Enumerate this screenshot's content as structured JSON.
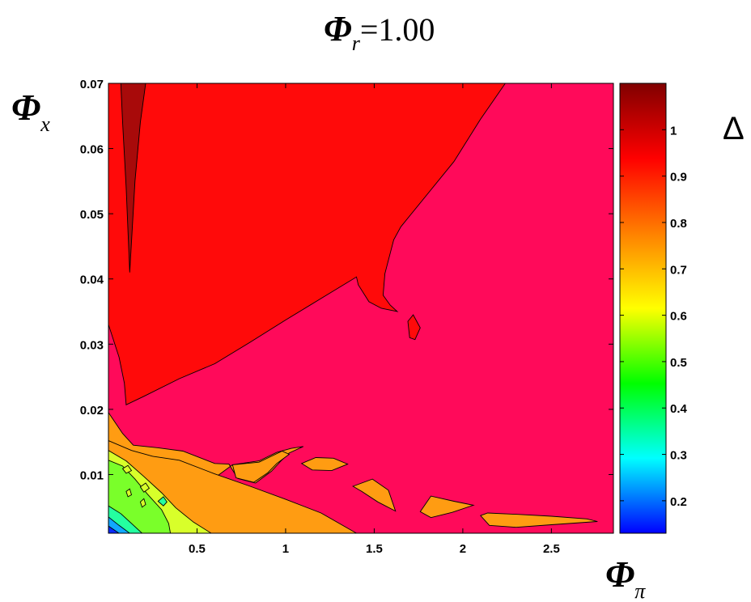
{
  "chart_data": {
    "type": "contour",
    "title": {
      "symbol": "Φ",
      "subscript": "r",
      "value_text": "=1.00"
    },
    "xlabel": {
      "symbol": "Φ",
      "subscript": "π"
    },
    "ylabel": {
      "symbol": "Φ",
      "subscript": "x"
    },
    "colorbar_label": "Δ",
    "xlim": [
      0.0,
      2.85
    ],
    "ylim": [
      0.001,
      0.07
    ],
    "clim": [
      0.13,
      1.1
    ],
    "x_ticks": [
      0.5,
      1,
      1.5,
      2,
      2.5
    ],
    "x_tick_labels": [
      "0.5",
      "1",
      "1.5",
      "2",
      "2.5"
    ],
    "y_ticks": [
      0.01,
      0.02,
      0.03,
      0.04,
      0.05,
      0.06,
      0.07
    ],
    "y_tick_labels": [
      "0.01",
      "0.02",
      "0.03",
      "0.04",
      "0.05",
      "0.06",
      "0.07"
    ],
    "colorbar_ticks": [
      0.2,
      0.3,
      0.4,
      0.5,
      0.6,
      0.7,
      0.8,
      0.9,
      1.0
    ],
    "colorbar_tick_labels": [
      "0.2",
      "0.3",
      "0.4",
      "0.5",
      "0.6",
      "0.7",
      "0.8",
      "0.9",
      "1"
    ],
    "background_level_color": "#ff0a5a",
    "colormap": [
      "#0000ff",
      "#00ffff",
      "#00ff00",
      "#ffff00",
      "#ff8000",
      "#ff0000",
      "#800000"
    ],
    "regions": [
      {
        "level": 1.0,
        "color": "#ff0a0a",
        "points": [
          [
            0,
            0.07
          ],
          [
            2.24,
            0.07
          ],
          [
            2.1,
            0.0645
          ],
          [
            1.95,
            0.058
          ],
          [
            1.8,
            0.053
          ],
          [
            1.65,
            0.048
          ],
          [
            1.61,
            0.046
          ],
          [
            1.56,
            0.0408
          ],
          [
            1.55,
            0.0375
          ],
          [
            1.59,
            0.036
          ],
          [
            1.63,
            0.035
          ],
          [
            1.54,
            0.0355
          ],
          [
            1.47,
            0.0365
          ],
          [
            1.41,
            0.0391
          ],
          [
            1.4,
            0.0403
          ],
          [
            1.2,
            0.037
          ],
          [
            1.0,
            0.0337
          ],
          [
            0.8,
            0.0303
          ],
          [
            0.6,
            0.027
          ],
          [
            0.4,
            0.0247
          ],
          [
            0.2,
            0.022
          ],
          [
            0.1,
            0.0207
          ],
          [
            0.09,
            0.024
          ],
          [
            0.06,
            0.028
          ],
          [
            0.0,
            0.033
          ]
        ]
      },
      {
        "level": 1.0,
        "color": "#ff0a0a",
        "points": [
          [
            1.69,
            0.0335
          ],
          [
            1.72,
            0.0345
          ],
          [
            1.76,
            0.0325
          ],
          [
            1.73,
            0.0307
          ],
          [
            1.7,
            0.031
          ]
        ]
      },
      {
        "level": 1.08,
        "color": "#a80a0a",
        "points": [
          [
            0.07,
            0.07
          ],
          [
            0.21,
            0.07
          ],
          [
            0.18,
            0.064
          ],
          [
            0.15,
            0.055
          ],
          [
            0.12,
            0.041
          ],
          [
            0.1,
            0.054
          ],
          [
            0.08,
            0.064
          ]
        ]
      },
      {
        "level": 0.85,
        "color": "#ff9c12",
        "points": [
          [
            0.0,
            0.001
          ],
          [
            1.4,
            0.001
          ],
          [
            1.2,
            0.0035
          ],
          [
            1.0,
            0.0055
          ],
          [
            0.8,
            0.0078
          ],
          [
            0.6,
            0.0098
          ],
          [
            0.45,
            0.0112
          ],
          [
            0.35,
            0.012
          ],
          [
            0.25,
            0.0132
          ],
          [
            0.15,
            0.0137
          ],
          [
            0.1,
            0.0148
          ],
          [
            0.0,
            0.0152
          ]
        ]
      },
      {
        "level": 0.85,
        "color": "#ff9c12",
        "points": [
          [
            0.0,
            0.0195
          ],
          [
            0.0,
            0.0152
          ],
          [
            0.2,
            0.012
          ],
          [
            0.4,
            0.0114
          ],
          [
            0.6,
            0.0095
          ],
          [
            0.7,
            0.0115
          ],
          [
            0.85,
            0.0121
          ],
          [
            0.95,
            0.0134
          ],
          [
            1.03,
            0.014
          ],
          [
            1.1,
            0.0143
          ],
          [
            1.02,
            0.0133
          ],
          [
            0.97,
            0.012
          ],
          [
            0.92,
            0.0105
          ],
          [
            0.83,
            0.0087
          ],
          [
            0.73,
            0.0094
          ],
          [
            0.68,
            0.0116
          ],
          [
            0.6,
            0.0117
          ],
          [
            0.42,
            0.0136
          ],
          [
            0.28,
            0.0141
          ],
          [
            0.14,
            0.0145
          ],
          [
            0.08,
            0.0163
          ]
        ]
      },
      {
        "level": 0.85,
        "color": "#ff9c12",
        "points": [
          [
            0.0,
            0.0152
          ],
          [
            0.13,
            0.0137
          ],
          [
            0.25,
            0.0128
          ],
          [
            0.4,
            0.0122
          ],
          [
            0.6,
            0.0101
          ],
          [
            0.8,
            0.0082
          ],
          [
            1.0,
            0.0062
          ],
          [
            1.2,
            0.0041
          ],
          [
            1.4,
            0.001
          ],
          [
            0.0,
            0.001
          ]
        ]
      },
      {
        "level": 0.85,
        "color": "#ff9c12",
        "points": [
          [
            0.7,
            0.0115
          ],
          [
            0.85,
            0.0119
          ],
          [
            0.98,
            0.0136
          ],
          [
            1.02,
            0.0131
          ],
          [
            0.95,
            0.0117
          ],
          [
            0.9,
            0.0103
          ],
          [
            0.82,
            0.0088
          ],
          [
            0.72,
            0.0095
          ]
        ]
      },
      {
        "level": 0.85,
        "color": "#ff9c12",
        "points": [
          [
            1.09,
            0.0117
          ],
          [
            1.17,
            0.0126
          ],
          [
            1.27,
            0.0125
          ],
          [
            1.35,
            0.0116
          ],
          [
            1.26,
            0.0106
          ],
          [
            1.15,
            0.0107
          ]
        ]
      },
      {
        "level": 0.85,
        "color": "#ff9c12",
        "points": [
          [
            1.38,
            0.0082
          ],
          [
            1.49,
            0.0093
          ],
          [
            1.58,
            0.0076
          ],
          [
            1.62,
            0.0044
          ],
          [
            1.52,
            0.0058
          ],
          [
            1.43,
            0.0074
          ]
        ]
      },
      {
        "level": 0.85,
        "color": "#ff9c12",
        "points": [
          [
            1.76,
            0.0043
          ],
          [
            1.82,
            0.0067
          ],
          [
            1.95,
            0.0059
          ],
          [
            2.06,
            0.0053
          ],
          [
            1.94,
            0.0042
          ],
          [
            1.82,
            0.0034
          ]
        ]
      },
      {
        "level": 0.85,
        "color": "#ff9c12",
        "points": [
          [
            2.1,
            0.0037
          ],
          [
            2.14,
            0.0041
          ],
          [
            2.3,
            0.0039
          ],
          [
            2.5,
            0.0036
          ],
          [
            2.7,
            0.0032
          ],
          [
            2.76,
            0.0028
          ],
          [
            2.5,
            0.0023
          ],
          [
            2.3,
            0.0019
          ],
          [
            2.15,
            0.0022
          ]
        ]
      },
      {
        "level": 0.7,
        "color": "#d8ff2a",
        "points": [
          [
            0.0,
            0.001
          ],
          [
            0.58,
            0.001
          ],
          [
            0.48,
            0.0027
          ],
          [
            0.38,
            0.0049
          ],
          [
            0.3,
            0.0072
          ],
          [
            0.2,
            0.0097
          ],
          [
            0.1,
            0.0121
          ],
          [
            0.0,
            0.0137
          ]
        ]
      },
      {
        "level": 0.6,
        "color": "#7aff2a",
        "points": [
          [
            0.0,
            0.001
          ],
          [
            0.35,
            0.001
          ],
          [
            0.34,
            0.0025
          ],
          [
            0.3,
            0.0046
          ],
          [
            0.22,
            0.007
          ],
          [
            0.15,
            0.0093
          ],
          [
            0.08,
            0.0113
          ],
          [
            0.0,
            0.0122
          ]
        ]
      },
      {
        "level": 0.5,
        "color": "#24ffa0",
        "points": [
          [
            0.0,
            0.001
          ],
          [
            0.19,
            0.001
          ],
          [
            0.13,
            0.0025
          ],
          [
            0.07,
            0.004
          ],
          [
            0.0,
            0.0052
          ]
        ]
      },
      {
        "level": 0.35,
        "color": "#10a8ff",
        "points": [
          [
            0.0,
            0.001
          ],
          [
            0.12,
            0.001
          ],
          [
            0.06,
            0.0022
          ],
          [
            0.0,
            0.0035
          ]
        ]
      },
      {
        "level": 0.2,
        "color": "#0a2aff",
        "points": [
          [
            0.0,
            0.001
          ],
          [
            0.06,
            0.001
          ],
          [
            0.0,
            0.0021
          ]
        ]
      },
      {
        "level": 0.7,
        "color": "#d8ff2a",
        "points": [
          [
            0.08,
            0.0109
          ],
          [
            0.11,
            0.0114
          ],
          [
            0.13,
            0.0106
          ],
          [
            0.1,
            0.0102
          ]
        ]
      },
      {
        "level": 0.7,
        "color": "#d8ff2a",
        "points": [
          [
            0.18,
            0.0081
          ],
          [
            0.21,
            0.0087
          ],
          [
            0.23,
            0.0079
          ],
          [
            0.2,
            0.0073
          ]
        ]
      },
      {
        "level": 0.7,
        "color": "#d8ff2a",
        "points": [
          [
            0.1,
            0.0074
          ],
          [
            0.12,
            0.0078
          ],
          [
            0.13,
            0.0069
          ],
          [
            0.11,
            0.0066
          ]
        ]
      },
      {
        "level": 0.7,
        "color": "#d8ff2a",
        "points": [
          [
            0.18,
            0.0058
          ],
          [
            0.2,
            0.0063
          ],
          [
            0.21,
            0.0054
          ],
          [
            0.19,
            0.005
          ]
        ]
      },
      {
        "level": 0.55,
        "color": "#24ffa0",
        "points": [
          [
            0.28,
            0.0059
          ],
          [
            0.31,
            0.0066
          ],
          [
            0.33,
            0.0058
          ],
          [
            0.31,
            0.0052
          ]
        ]
      }
    ]
  }
}
